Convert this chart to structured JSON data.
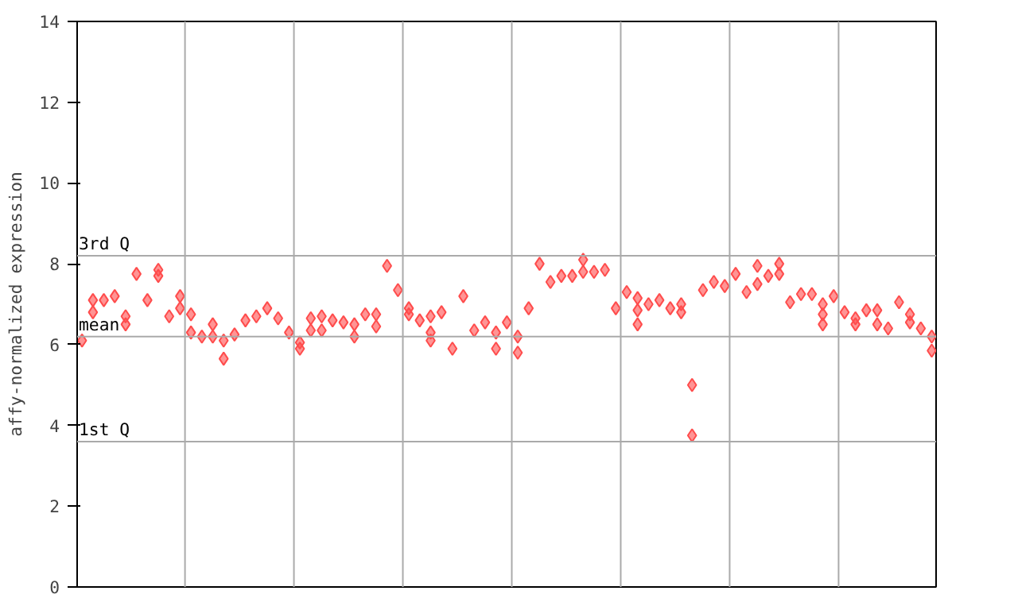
{
  "chart_data": {
    "type": "scatter",
    "ylabel": "affy-normalized expression",
    "categories": [
      null,
      null,
      null,
      null,
      null,
      null,
      null,
      null,
      null,
      null,
      null,
      null,
      null,
      null,
      null,
      null,
      null,
      null,
      null,
      null,
      null,
      null,
      null,
      null,
      null,
      null,
      null,
      null,
      null,
      null,
      null,
      null,
      null,
      null,
      null,
      null,
      null,
      null,
      null,
      null,
      null,
      null,
      null,
      null,
      null,
      null,
      null,
      null,
      null,
      null,
      null,
      null,
      null,
      null,
      null,
      null,
      null,
      null,
      null,
      null,
      null,
      null,
      null,
      null,
      null,
      null,
      null,
      null,
      null,
      null,
      null,
      null,
      null,
      null,
      null,
      null,
      null,
      null,
      null
    ],
    "series": [
      {
        "color": "#ff4c4c",
        "values": [
          6.1,
          7.1,
          7.1,
          7.2,
          6.7,
          7.75,
          7.1,
          7.85,
          6.7,
          7.2,
          6.75,
          6.2,
          6.5,
          6.1,
          6.25,
          6.6,
          6.7,
          6.9,
          6.65,
          6.3,
          6.05,
          6.65,
          6.7,
          6.6,
          6.55,
          6.5,
          6.75,
          6.75,
          7.95,
          7.35,
          6.9,
          6.6,
          6.7,
          6.8,
          5.9,
          7.2,
          6.35,
          6.55,
          6.3,
          6.55,
          6.2,
          6.9,
          8.0,
          7.55,
          7.7,
          7.7,
          7.8,
          7.8,
          7.85,
          6.9,
          7.3,
          7.15,
          7.0,
          7.1,
          6.9,
          7.0,
          5.0,
          7.35,
          7.55,
          7.45,
          7.75,
          7.3,
          7.95,
          7.7,
          8.0,
          7.05,
          7.25,
          7.25,
          7.0,
          7.2,
          6.8,
          6.65,
          6.85,
          6.85,
          6.4,
          7.05,
          6.55,
          6.4,
          6.2
        ]
      },
      {
        "color": "#ff4c4c",
        "values": [
          null,
          6.8,
          null,
          null,
          6.5,
          null,
          null,
          7.7,
          null,
          6.9,
          6.3,
          null,
          6.2,
          5.65,
          null,
          null,
          null,
          null,
          null,
          null,
          5.9,
          6.35,
          6.35,
          null,
          null,
          6.2,
          null,
          6.45,
          null,
          null,
          6.75,
          null,
          6.3,
          null,
          null,
          null,
          null,
          null,
          5.9,
          null,
          5.8,
          null,
          null,
          null,
          null,
          null,
          8.1,
          null,
          null,
          null,
          null,
          6.85,
          null,
          null,
          null,
          6.8,
          3.75,
          null,
          null,
          null,
          null,
          null,
          7.5,
          null,
          7.75,
          null,
          null,
          null,
          6.75,
          null,
          null,
          6.5,
          null,
          6.5,
          null,
          null,
          6.75,
          null,
          5.85
        ]
      },
      {
        "color": "#ff4c4c",
        "values": [
          null,
          null,
          null,
          null,
          null,
          null,
          null,
          null,
          null,
          null,
          null,
          null,
          null,
          null,
          null,
          null,
          null,
          null,
          null,
          null,
          null,
          null,
          null,
          null,
          null,
          null,
          null,
          null,
          null,
          null,
          null,
          null,
          6.1,
          null,
          null,
          null,
          null,
          null,
          null,
          null,
          null,
          null,
          null,
          null,
          null,
          null,
          null,
          null,
          null,
          null,
          null,
          6.5,
          null,
          null,
          null,
          null,
          null,
          null,
          null,
          null,
          null,
          null,
          null,
          null,
          null,
          null,
          null,
          null,
          6.5,
          null,
          null,
          null,
          null,
          null,
          null,
          null,
          null,
          null,
          null
        ]
      }
    ],
    "marker": "diamond",
    "ylim": [
      0,
      14
    ],
    "yticks": [
      0,
      2,
      4,
      6,
      8,
      10,
      12,
      14
    ],
    "ref_lines": [
      {
        "axis": "y",
        "value": 8.2,
        "label": "3rd Q",
        "color": "#aaaaaa"
      },
      {
        "axis": "y",
        "value": 6.2,
        "label": "mean",
        "color": "#aaaaaa"
      },
      {
        "axis": "y",
        "value": 3.6,
        "label": "1st Q",
        "color": "#aaaaaa"
      }
    ],
    "grid": "x",
    "tick_labels": "y"
  }
}
